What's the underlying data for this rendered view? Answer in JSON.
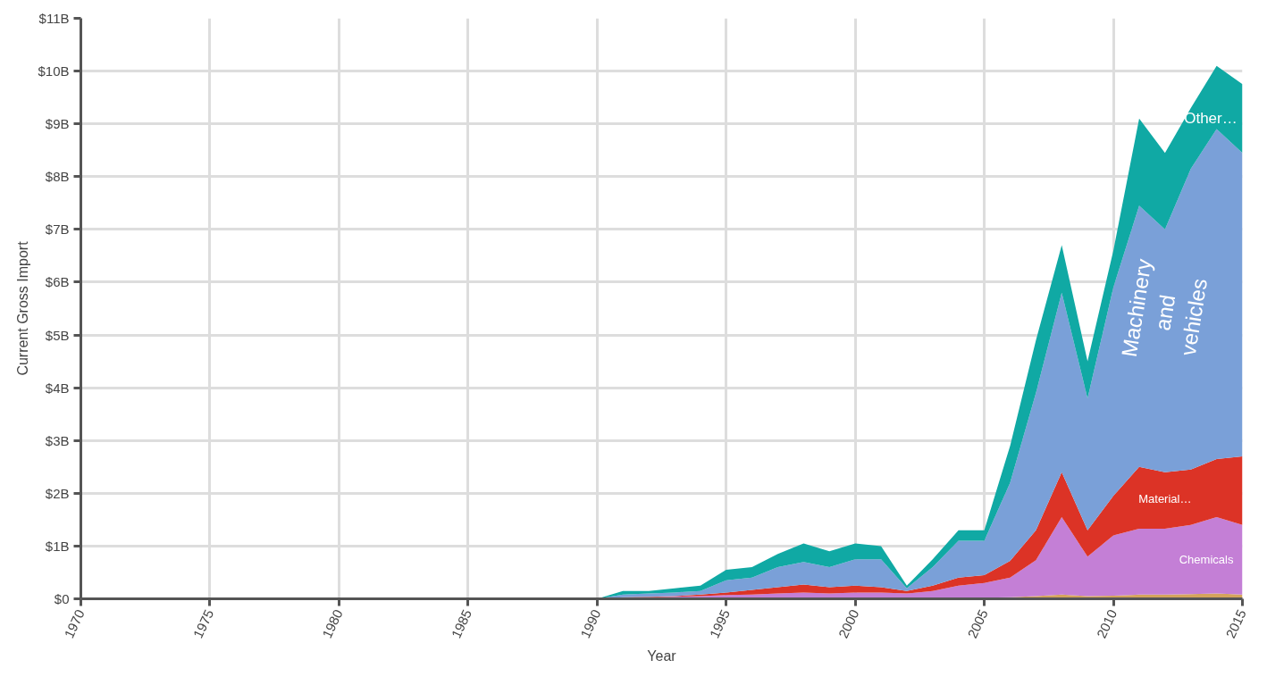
{
  "chart_data": {
    "type": "area",
    "stacked": true,
    "xlabel": "Year",
    "ylabel": "Current Gross Import",
    "x": [
      1990,
      1991,
      1992,
      1993,
      1994,
      1995,
      1996,
      1997,
      1998,
      1999,
      2000,
      2001,
      2002,
      2003,
      2004,
      2005,
      2006,
      2007,
      2008,
      2009,
      2010,
      2011,
      2012,
      2013,
      2014,
      2015
    ],
    "series": [
      {
        "color": "#d4a45c",
        "values": [
          0,
          0.01,
          0.01,
          0.01,
          0.01,
          0.01,
          0.01,
          0.02,
          0.02,
          0.02,
          0.02,
          0.02,
          0.02,
          0.02,
          0.02,
          0.02,
          0.03,
          0.05,
          0.08,
          0.05,
          0.06,
          0.08,
          0.08,
          0.09,
          0.1,
          0.08
        ]
      },
      {
        "name": "Chemicals",
        "color": "#c47fd6",
        "values": [
          0,
          0.01,
          0.02,
          0.03,
          0.04,
          0.06,
          0.07,
          0.08,
          0.1,
          0.08,
          0.1,
          0.1,
          0.08,
          0.13,
          0.23,
          0.28,
          0.37,
          0.68,
          1.47,
          0.75,
          1.14,
          1.25,
          1.25,
          1.31,
          1.45,
          1.32
        ]
      },
      {
        "name": "Material…",
        "color": "#dc3326",
        "values": [
          0,
          0.01,
          0.01,
          0.01,
          0.03,
          0.05,
          0.09,
          0.12,
          0.15,
          0.12,
          0.13,
          0.1,
          0.05,
          0.1,
          0.15,
          0.15,
          0.32,
          0.57,
          0.85,
          0.5,
          0.75,
          1.17,
          1.07,
          1.05,
          1.1,
          1.3
        ]
      },
      {
        "name": "Machinery and vehicles",
        "color": "#7aa0d8",
        "values": [
          0,
          0.05,
          0.06,
          0.07,
          0.07,
          0.23,
          0.23,
          0.38,
          0.43,
          0.38,
          0.5,
          0.53,
          0.05,
          0.35,
          0.7,
          0.65,
          1.48,
          2.6,
          3.4,
          2.5,
          3.95,
          4.95,
          4.6,
          5.7,
          6.25,
          5.75
        ]
      },
      {
        "name": "Other…",
        "color": "#10a9a4",
        "values": [
          0,
          0.07,
          0.05,
          0.08,
          0.1,
          0.2,
          0.2,
          0.25,
          0.35,
          0.3,
          0.3,
          0.25,
          0.05,
          0.15,
          0.2,
          0.2,
          0.7,
          1.0,
          0.9,
          0.7,
          0.7,
          1.65,
          1.45,
          1.15,
          1.2,
          1.3
        ]
      }
    ],
    "xlim": [
      1970,
      2015
    ],
    "xticks": [
      1970,
      1975,
      1980,
      1985,
      1990,
      1995,
      2000,
      2005,
      2010,
      2015
    ],
    "ylim": [
      0,
      11
    ],
    "yticks": [
      {
        "value": 0,
        "label": "$0"
      },
      {
        "value": 1,
        "label": "$1B"
      },
      {
        "value": 2,
        "label": "$2B"
      },
      {
        "value": 3,
        "label": "$3B"
      },
      {
        "value": 4,
        "label": "$4B"
      },
      {
        "value": 5,
        "label": "$5B"
      },
      {
        "value": 6,
        "label": "$6B"
      },
      {
        "value": 7,
        "label": "$7B"
      },
      {
        "value": 8,
        "label": "$8B"
      },
      {
        "value": 9,
        "label": "$9B"
      },
      {
        "value": 10,
        "label": "$10B"
      },
      {
        "value": 11,
        "label": "$11B"
      }
    ],
    "grid": true
  }
}
